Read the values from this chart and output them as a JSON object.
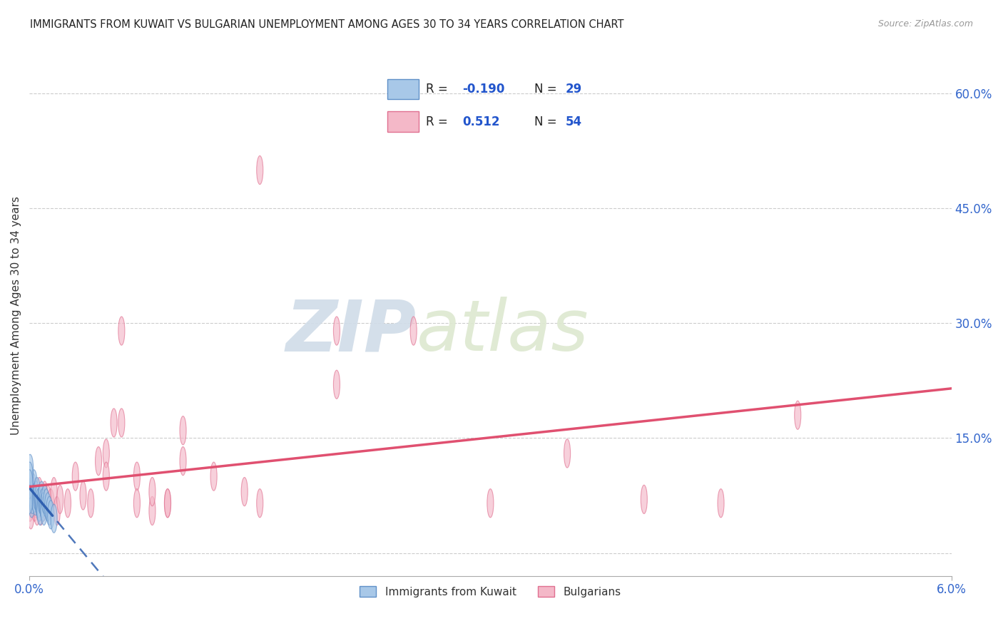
{
  "title": "IMMIGRANTS FROM KUWAIT VS BULGARIAN UNEMPLOYMENT AMONG AGES 30 TO 34 YEARS CORRELATION CHART",
  "source": "Source: ZipAtlas.com",
  "ylabel": "Unemployment Among Ages 30 to 34 years",
  "xmin": 0.0,
  "xmax": 0.06,
  "ymin": -0.03,
  "ymax": 0.65,
  "right_yticks": [
    0.0,
    0.15,
    0.3,
    0.45,
    0.6
  ],
  "right_yticklabels": [
    "",
    "15.0%",
    "30.0%",
    "45.0%",
    "60.0%"
  ],
  "watermark_zip": "ZIP",
  "watermark_atlas": "atlas",
  "series1_label": "Immigrants from Kuwait",
  "series2_label": "Bulgarians",
  "color_blue_fill": "#a8c8e8",
  "color_blue_edge": "#6090c8",
  "color_pink_fill": "#f4b8c8",
  "color_pink_edge": "#e07090",
  "color_blue_line": "#3060b0",
  "color_pink_line": "#e05070",
  "title_fontsize": 10.5,
  "source_fontsize": 9,
  "legend_color": "#2255cc",
  "kuwait_x": [
    8e-05,
    0.00012,
    0.00015,
    0.0002,
    0.00025,
    0.0003,
    0.00035,
    0.0004,
    0.00045,
    0.0005,
    0.00055,
    0.0006,
    0.00065,
    0.0007,
    0.00075,
    0.0008,
    0.00085,
    0.0009,
    0.00095,
    0.001,
    0.0011,
    0.0012,
    0.0013,
    0.0014,
    0.0016,
    5e-05,
    3e-05,
    2e-05,
    1e-05
  ],
  "kuwait_y": [
    0.075,
    0.08,
    0.065,
    0.07,
    0.085,
    0.09,
    0.072,
    0.068,
    0.075,
    0.08,
    0.07,
    0.065,
    0.06,
    0.055,
    0.07,
    0.075,
    0.065,
    0.06,
    0.055,
    0.07,
    0.065,
    0.06,
    0.055,
    0.05,
    0.045,
    0.11,
    0.1,
    0.09,
    0.07
  ],
  "bulgarian_x": [
    5e-05,
    0.0001,
    0.00015,
    0.0002,
    0.00025,
    0.0003,
    0.00035,
    0.0004,
    0.00045,
    0.0005,
    0.00055,
    0.0006,
    0.00065,
    0.0007,
    0.00075,
    0.0008,
    0.00085,
    0.0009,
    0.001,
    0.0012,
    0.0014,
    0.0016,
    0.0018,
    0.002,
    0.0025,
    0.003,
    0.0035,
    0.004,
    0.0045,
    0.005,
    0.0055,
    0.006,
    0.007,
    0.008,
    0.009,
    0.01,
    0.015,
    0.015,
    0.02,
    0.02,
    0.025,
    0.03,
    0.035,
    0.04,
    0.045,
    0.05,
    0.005,
    0.006,
    0.007,
    0.008,
    0.009,
    0.01,
    0.012,
    0.014
  ],
  "bulgarian_y": [
    0.06,
    0.05,
    0.07,
    0.065,
    0.08,
    0.075,
    0.06,
    0.07,
    0.065,
    0.055,
    0.07,
    0.065,
    0.08,
    0.06,
    0.055,
    0.07,
    0.065,
    0.06,
    0.075,
    0.07,
    0.065,
    0.08,
    0.055,
    0.07,
    0.065,
    0.1,
    0.075,
    0.065,
    0.12,
    0.13,
    0.17,
    0.17,
    0.1,
    0.055,
    0.065,
    0.12,
    0.5,
    0.065,
    0.29,
    0.22,
    0.29,
    0.065,
    0.13,
    0.07,
    0.065,
    0.18,
    0.1,
    0.29,
    0.065,
    0.08,
    0.065,
    0.16,
    0.1,
    0.08
  ]
}
